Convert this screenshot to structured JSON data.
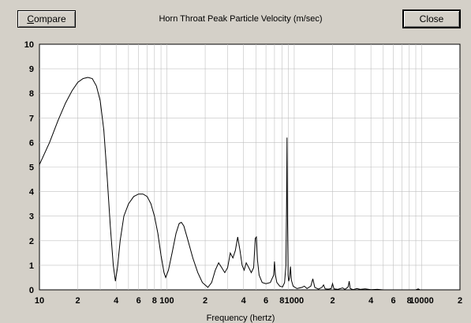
{
  "toolbar": {
    "compare_label_prefix": "",
    "compare_label_underlined": "C",
    "compare_label_rest": "ompare",
    "close_label": "Close"
  },
  "chart_data": {
    "type": "line",
    "title": "Horn Throat Peak Particle Velocity (m/sec)",
    "xlabel": "Frequency (hertz)",
    "ylabel": "",
    "x_scale": "log",
    "xlim": [
      10,
      20000
    ],
    "ylim": [
      0,
      10
    ],
    "y_ticks": [
      0,
      1,
      2,
      3,
      4,
      5,
      6,
      7,
      8,
      9,
      10
    ],
    "x_tick_labels": [
      {
        "x": 10,
        "label": "10"
      },
      {
        "x": 20,
        "label": "2"
      },
      {
        "x": 40,
        "label": "4"
      },
      {
        "x": 60,
        "label": "6"
      },
      {
        "x": 80,
        "label": "8"
      },
      {
        "x": 100,
        "label": "100"
      },
      {
        "x": 200,
        "label": "2"
      },
      {
        "x": 400,
        "label": "4"
      },
      {
        "x": 600,
        "label": "6"
      },
      {
        "x": 800,
        "label": "8"
      },
      {
        "x": 1000,
        "label": "1000"
      },
      {
        "x": 2000,
        "label": "2"
      },
      {
        "x": 4000,
        "label": "4"
      },
      {
        "x": 6000,
        "label": "6"
      },
      {
        "x": 8000,
        "label": "8"
      },
      {
        "x": 10000,
        "label": "10000"
      },
      {
        "x": 20000,
        "label": "2"
      }
    ],
    "grid": true,
    "line_color": "#000000",
    "series": [
      {
        "values": [
          [
            10,
            5.1
          ],
          [
            12,
            6.0
          ],
          [
            14,
            6.9
          ],
          [
            16,
            7.6
          ],
          [
            18,
            8.1
          ],
          [
            20,
            8.45
          ],
          [
            22,
            8.6
          ],
          [
            24,
            8.65
          ],
          [
            26,
            8.6
          ],
          [
            28,
            8.3
          ],
          [
            30,
            7.7
          ],
          [
            32,
            6.5
          ],
          [
            34,
            4.6
          ],
          [
            36,
            2.6
          ],
          [
            38,
            1.0
          ],
          [
            39.5,
            0.35
          ],
          [
            41,
            0.9
          ],
          [
            43,
            2.0
          ],
          [
            46,
            3.0
          ],
          [
            50,
            3.5
          ],
          [
            55,
            3.8
          ],
          [
            60,
            3.9
          ],
          [
            65,
            3.9
          ],
          [
            70,
            3.8
          ],
          [
            75,
            3.5
          ],
          [
            80,
            3.0
          ],
          [
            85,
            2.3
          ],
          [
            90,
            1.4
          ],
          [
            95,
            0.7
          ],
          [
            98,
            0.5
          ],
          [
            103,
            0.8
          ],
          [
            110,
            1.5
          ],
          [
            118,
            2.3
          ],
          [
            125,
            2.7
          ],
          [
            130,
            2.75
          ],
          [
            136,
            2.6
          ],
          [
            145,
            2.1
          ],
          [
            160,
            1.3
          ],
          [
            175,
            0.7
          ],
          [
            190,
            0.3
          ],
          [
            210,
            0.1
          ],
          [
            225,
            0.3
          ],
          [
            240,
            0.8
          ],
          [
            255,
            1.1
          ],
          [
            270,
            0.9
          ],
          [
            285,
            0.7
          ],
          [
            300,
            0.9
          ],
          [
            315,
            1.5
          ],
          [
            330,
            1.3
          ],
          [
            345,
            1.6
          ],
          [
            360,
            2.15
          ],
          [
            375,
            1.6
          ],
          [
            390,
            1.0
          ],
          [
            405,
            0.8
          ],
          [
            420,
            1.1
          ],
          [
            440,
            0.9
          ],
          [
            460,
            0.7
          ],
          [
            480,
            0.9
          ],
          [
            495,
            2.1
          ],
          [
            505,
            2.15
          ],
          [
            515,
            1.2
          ],
          [
            530,
            0.6
          ],
          [
            560,
            0.3
          ],
          [
            600,
            0.25
          ],
          [
            650,
            0.3
          ],
          [
            690,
            0.6
          ],
          [
            700,
            1.15
          ],
          [
            712,
            0.6
          ],
          [
            730,
            0.3
          ],
          [
            770,
            0.15
          ],
          [
            810,
            0.12
          ],
          [
            840,
            0.3
          ],
          [
            860,
            1.0
          ],
          [
            870,
            3.4
          ],
          [
            878,
            6.2
          ],
          [
            886,
            3.0
          ],
          [
            895,
            0.6
          ],
          [
            905,
            0.35
          ],
          [
            920,
            0.5
          ],
          [
            935,
            0.95
          ],
          [
            950,
            0.4
          ],
          [
            980,
            0.15
          ],
          [
            1050,
            0.05
          ],
          [
            1150,
            0.1
          ],
          [
            1200,
            0.15
          ],
          [
            1260,
            0.05
          ],
          [
            1350,
            0.15
          ],
          [
            1400,
            0.45
          ],
          [
            1450,
            0.1
          ],
          [
            1550,
            0.03
          ],
          [
            1650,
            0.1
          ],
          [
            1700,
            0.2
          ],
          [
            1750,
            0.04
          ],
          [
            1850,
            0.03
          ],
          [
            1950,
            0.05
          ],
          [
            2000,
            0.25
          ],
          [
            2050,
            0.04
          ],
          [
            2200,
            0.02
          ],
          [
            2400,
            0.08
          ],
          [
            2500,
            0.02
          ],
          [
            2650,
            0.12
          ],
          [
            2700,
            0.35
          ],
          [
            2750,
            0.05
          ],
          [
            2900,
            0.01
          ],
          [
            3100,
            0.05
          ],
          [
            3300,
            0.02
          ],
          [
            3600,
            0.04
          ],
          [
            4000,
            0.01
          ],
          [
            4500,
            0.02
          ],
          [
            5000,
            0.0
          ],
          [
            9000,
            0.0
          ],
          [
            9400,
            0.04
          ],
          [
            9700,
            0.0
          ],
          [
            20000,
            0.0
          ]
        ]
      }
    ]
  }
}
